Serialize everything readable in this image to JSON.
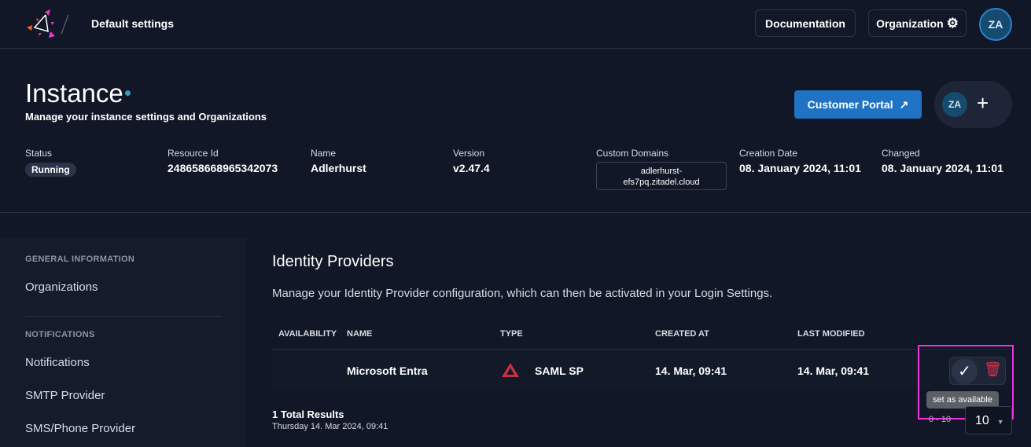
{
  "header": {
    "breadcrumb": "Default settings",
    "documentation": "Documentation",
    "organization": "Organization",
    "avatar": "ZA"
  },
  "instance": {
    "title": "Instance",
    "subtitle": "Manage your instance settings and Organizations",
    "customer_portal": "Customer Portal",
    "avatar": "ZA",
    "status_label": "Status",
    "status": "Running",
    "resource_label": "Resource Id",
    "resource": "248658668965342073",
    "name_label": "Name",
    "name": "Adlerhurst",
    "version_label": "Version",
    "version": "v2.47.4",
    "domains_label": "Custom Domains",
    "domain_line1": "adlerhurst-",
    "domain_line2": "efs7pq.zitadel.cloud",
    "creation_label": "Creation Date",
    "creation": "08. January 2024, 11:01",
    "changed_label": "Changed",
    "changed": "08. January 2024, 11:01"
  },
  "sidebar": {
    "sec1": "GENERAL INFORMATION",
    "organizations": "Organizations",
    "sec2": "NOTIFICATIONS",
    "notifications": "Notifications",
    "smtp": "SMTP Provider",
    "sms": "SMS/Phone Provider"
  },
  "main": {
    "title": "Identity Providers",
    "description": "Manage your Identity Provider configuration, which can then be activated in your Login Settings.",
    "columns": [
      "AVAILABILITY",
      "NAME",
      "TYPE",
      "CREATED AT",
      "LAST MODIFIED"
    ],
    "rows": [
      {
        "name": "Microsoft Entra",
        "type": "SAML SP",
        "created": "14. Mar, 09:41",
        "modified": "14. Mar, 09:41"
      }
    ],
    "total": "1 Total Results",
    "timestamp": "Thursday 14. Mar 2024, 09:41",
    "tooltip": "set as available",
    "range": "0 - 10",
    "page_size": "10"
  },
  "colors": {
    "accent": "#2073c4",
    "highlight": "#ee33dd",
    "delete": "#e5304a"
  }
}
